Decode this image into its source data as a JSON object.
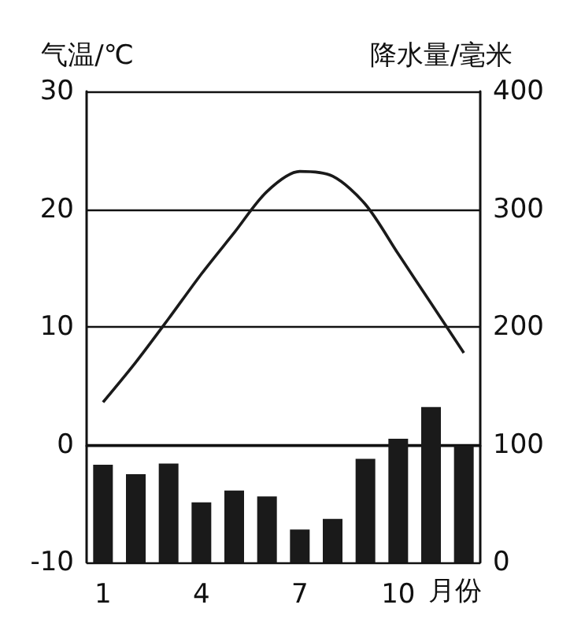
{
  "chart_data": {
    "type": "bar",
    "ylabel": "气温/℃",
    "y2label": "降水量/毫米",
    "xlabel": "月份",
    "categories": [
      "1",
      null,
      null,
      "4",
      null,
      null,
      "7",
      null,
      null,
      "10",
      null,
      null
    ],
    "series": [
      {
        "axis": "y2",
        "color": "#1a1a1a",
        "values": [
          83,
          75,
          84,
          51,
          61,
          56,
          28,
          37,
          88,
          105,
          132,
          99
        ]
      },
      {
        "type": "line",
        "axis": "y",
        "color": "#1a1a1a",
        "marker": "none",
        "values": [
          3.6,
          7,
          10.7,
          14.5,
          18,
          21.5,
          23.2,
          22.8,
          20.4,
          16.2,
          12,
          7.8
        ]
      }
    ],
    "ylim": [
      -10,
      30
    ],
    "yticks": [
      -10,
      0,
      10,
      20,
      30
    ],
    "y2lim": [
      0,
      400
    ],
    "y2ticks": [
      0,
      100,
      200,
      300,
      400
    ],
    "grid": "y"
  }
}
